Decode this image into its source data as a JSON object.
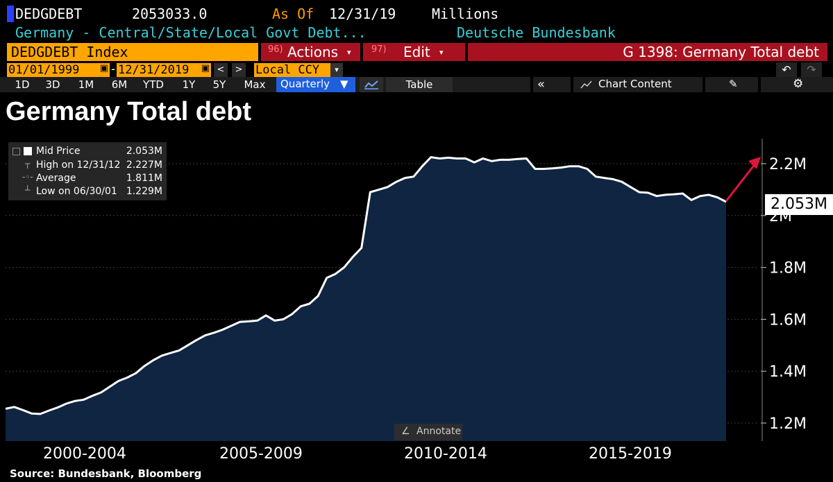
{
  "header": {
    "ticker": "DEDGDEBT",
    "last_value": "2053033.0",
    "as_of_label": "As Of",
    "as_of_date": "12/31/19",
    "units": "Millions",
    "description": "Germany - Central/State/Local Govt Debt...",
    "source": "Deutsche Bundesbank"
  },
  "toolbar": {
    "index_label": "DEDGDEBT Index",
    "actions_num": "96)",
    "actions_label": "Actions",
    "edit_num": "97)",
    "edit_label": "Edit",
    "chart_label": "G 1398: Germany Total debt",
    "start_date": "01/01/1999",
    "end_date": "12/31/2019",
    "currency": "Local CCY",
    "ranges": [
      "1D",
      "3D",
      "1M",
      "6M",
      "YTD",
      "1Y",
      "5Y",
      "Max"
    ],
    "frequency": "Quarterly",
    "table_label": "Table",
    "chart_content_label": "Chart Content"
  },
  "chart_title": "Germany Total debt",
  "legend": {
    "mid_price_label": "Mid Price",
    "mid_price_value": "2.053M",
    "high_label": "High on 12/31/12",
    "high_value": "2.227M",
    "average_label": "Average",
    "average_value": "1.811M",
    "low_label": "Low on 06/30/01",
    "low_value": "1.229M"
  },
  "annotate_label": "Annotate",
  "last_value_label": "2.053M",
  "footer_source": "Source: Bundesbank, Bloomberg",
  "chart_data": {
    "type": "area",
    "x_groups": [
      "2000-2004",
      "2005-2009",
      "2010-2014",
      "2015-2019"
    ],
    "y_ticks": [
      "1.2M",
      "1.4M",
      "1.6M",
      "1.8M",
      "2M",
      "2.2M"
    ],
    "ylim": [
      1.14,
      2.26
    ],
    "x": [
      "1999Q1",
      "1999Q2",
      "1999Q3",
      "1999Q4",
      "2000Q1",
      "2000Q2",
      "2000Q3",
      "2000Q4",
      "2001Q1",
      "2001Q2",
      "2001Q3",
      "2001Q4",
      "2002Q1",
      "2002Q2",
      "2002Q3",
      "2002Q4",
      "2003Q1",
      "2003Q2",
      "2003Q3",
      "2003Q4",
      "2004Q1",
      "2004Q2",
      "2004Q3",
      "2004Q4",
      "2005Q1",
      "2005Q2",
      "2005Q3",
      "2005Q4",
      "2006Q1",
      "2006Q2",
      "2006Q3",
      "2006Q4",
      "2007Q1",
      "2007Q2",
      "2007Q3",
      "2007Q4",
      "2008Q1",
      "2008Q2",
      "2008Q3",
      "2008Q4",
      "2009Q1",
      "2009Q2",
      "2009Q3",
      "2009Q4",
      "2010Q1",
      "2010Q2",
      "2010Q3",
      "2010Q4",
      "2011Q1",
      "2011Q2",
      "2011Q3",
      "2011Q4",
      "2012Q1",
      "2012Q2",
      "2012Q3",
      "2012Q4",
      "2013Q1",
      "2013Q2",
      "2013Q3",
      "2013Q4",
      "2014Q1",
      "2014Q2",
      "2014Q3",
      "2014Q4",
      "2015Q1",
      "2015Q2",
      "2015Q3",
      "2015Q4",
      "2016Q1",
      "2016Q2",
      "2016Q3",
      "2016Q4",
      "2017Q1",
      "2017Q2",
      "2017Q3",
      "2017Q4",
      "2018Q1",
      "2018Q2",
      "2018Q3",
      "2018Q4",
      "2019Q1",
      "2019Q2",
      "2019Q3",
      "2019Q4"
    ],
    "series": [
      {
        "values": [
          1.255,
          1.262,
          1.25,
          1.237,
          1.235,
          1.248,
          1.26,
          1.275,
          1.285,
          1.29,
          1.305,
          1.318,
          1.34,
          1.362,
          1.375,
          1.392,
          1.42,
          1.442,
          1.46,
          1.47,
          1.48,
          1.5,
          1.52,
          1.538,
          1.548,
          1.56,
          1.575,
          1.59,
          1.592,
          1.595,
          1.615,
          1.595,
          1.6,
          1.62,
          1.65,
          1.66,
          1.69,
          1.76,
          1.775,
          1.8,
          1.84,
          1.875,
          2.09,
          2.1,
          2.11,
          2.13,
          2.145,
          2.15,
          2.19,
          2.225,
          2.22,
          2.223,
          2.22,
          2.22,
          2.205,
          2.22,
          2.21,
          2.215,
          2.215,
          2.218,
          2.22,
          2.18,
          2.18,
          2.182,
          2.185,
          2.19,
          2.19,
          2.18,
          2.15,
          2.145,
          2.14,
          2.13,
          2.11,
          2.09,
          2.088,
          2.075,
          2.08,
          2.082,
          2.085,
          2.06,
          2.075,
          2.08,
          2.07,
          2.053
        ]
      }
    ]
  },
  "colors": {
    "orange": "#ffa500",
    "red": "#a81220",
    "cyan": "#39d0d8",
    "area": "#0f2542",
    "line": "#ffffff",
    "arrow": "#e0163a"
  }
}
